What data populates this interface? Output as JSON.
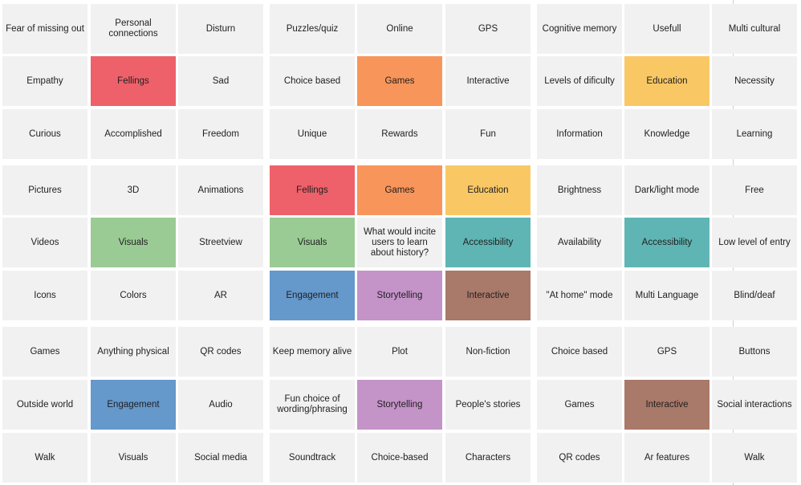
{
  "colors": {
    "default": "#f1f1f1",
    "red": "#ee616a",
    "orange": "#f8955a",
    "yellow": "#f9c865",
    "green": "#9bcb95",
    "teal": "#5fb5b4",
    "blue": "#6598cb",
    "purple": "#c493c8",
    "brown": "#a9796a"
  },
  "clusters": [
    {
      "notes": [
        {
          "text": "Fear of missing out",
          "color": "default"
        },
        {
          "text": "Personal connections",
          "color": "default"
        },
        {
          "text": "Disturn",
          "color": "default"
        },
        {
          "text": "Empathy",
          "color": "default"
        },
        {
          "text": "Fellings",
          "color": "red"
        },
        {
          "text": "Sad",
          "color": "default"
        },
        {
          "text": "Curious",
          "color": "default"
        },
        {
          "text": "Accomplished",
          "color": "default"
        },
        {
          "text": "Freedom",
          "color": "default"
        }
      ]
    },
    {
      "notes": [
        {
          "text": "Puzzles/quiz",
          "color": "default"
        },
        {
          "text": "Online",
          "color": "default"
        },
        {
          "text": "GPS",
          "color": "default"
        },
        {
          "text": "Choice based",
          "color": "default"
        },
        {
          "text": "Games",
          "color": "orange"
        },
        {
          "text": "Interactive",
          "color": "default"
        },
        {
          "text": "Unique",
          "color": "default"
        },
        {
          "text": "Rewards",
          "color": "default"
        },
        {
          "text": "Fun",
          "color": "default"
        }
      ]
    },
    {
      "notes": [
        {
          "text": "Cognitive memory",
          "color": "default"
        },
        {
          "text": "Usefull",
          "color": "default"
        },
        {
          "text": "Multi cultural",
          "color": "default"
        },
        {
          "text": "Levels of dificulty",
          "color": "default"
        },
        {
          "text": "Education",
          "color": "yellow"
        },
        {
          "text": "Necessity",
          "color": "default"
        },
        {
          "text": "Information",
          "color": "default"
        },
        {
          "text": "Knowledge",
          "color": "default"
        },
        {
          "text": "Learning",
          "color": "default"
        }
      ]
    },
    {
      "notes": [
        {
          "text": "Pictures",
          "color": "default"
        },
        {
          "text": "3D",
          "color": "default"
        },
        {
          "text": "Animations",
          "color": "default"
        },
        {
          "text": "Videos",
          "color": "default"
        },
        {
          "text": "Visuals",
          "color": "green"
        },
        {
          "text": "Streetview",
          "color": "default"
        },
        {
          "text": "Icons",
          "color": "default"
        },
        {
          "text": "Colors",
          "color": "default"
        },
        {
          "text": "AR",
          "color": "default"
        }
      ]
    },
    {
      "notes": [
        {
          "text": "Fellings",
          "color": "red"
        },
        {
          "text": "Games",
          "color": "orange"
        },
        {
          "text": "Education",
          "color": "yellow"
        },
        {
          "text": "Visuals",
          "color": "green"
        },
        {
          "text": "What would incite users to learn about history?",
          "color": "default"
        },
        {
          "text": "Accessibility",
          "color": "teal"
        },
        {
          "text": "Engagement",
          "color": "blue"
        },
        {
          "text": "Storytelling",
          "color": "purple"
        },
        {
          "text": "Interactive",
          "color": "brown"
        }
      ]
    },
    {
      "notes": [
        {
          "text": "Brightness",
          "color": "default"
        },
        {
          "text": "Dark/light mode",
          "color": "default"
        },
        {
          "text": "Free",
          "color": "default"
        },
        {
          "text": "Availability",
          "color": "default"
        },
        {
          "text": "Accessibility",
          "color": "teal"
        },
        {
          "text": "Low level of entry",
          "color": "default"
        },
        {
          "text": "\"At home\" mode",
          "color": "default"
        },
        {
          "text": "Multi Language",
          "color": "default"
        },
        {
          "text": "Blind/deaf",
          "color": "default"
        }
      ]
    },
    {
      "notes": [
        {
          "text": "Games",
          "color": "default"
        },
        {
          "text": "Anything physical",
          "color": "default"
        },
        {
          "text": "QR codes",
          "color": "default"
        },
        {
          "text": "Outside world",
          "color": "default"
        },
        {
          "text": "Engagement",
          "color": "blue"
        },
        {
          "text": "Audio",
          "color": "default"
        },
        {
          "text": "Walk",
          "color": "default"
        },
        {
          "text": "Visuals",
          "color": "default"
        },
        {
          "text": "Social media",
          "color": "default"
        }
      ]
    },
    {
      "notes": [
        {
          "text": "Keep memory alive",
          "color": "default"
        },
        {
          "text": "Plot",
          "color": "default"
        },
        {
          "text": "Non-fiction",
          "color": "default"
        },
        {
          "text": "Fun choice of wording/phrasing",
          "color": "default"
        },
        {
          "text": "Storytelling",
          "color": "purple"
        },
        {
          "text": "People's stories",
          "color": "default"
        },
        {
          "text": "Soundtrack",
          "color": "default"
        },
        {
          "text": "Choice-based",
          "color": "default"
        },
        {
          "text": "Characters",
          "color": "default"
        }
      ]
    },
    {
      "notes": [
        {
          "text": "Choice based",
          "color": "default"
        },
        {
          "text": "GPS",
          "color": "default"
        },
        {
          "text": "Buttons",
          "color": "default"
        },
        {
          "text": "Games",
          "color": "default"
        },
        {
          "text": "Interactive",
          "color": "brown"
        },
        {
          "text": "Social interactions",
          "color": "default"
        },
        {
          "text": "QR codes",
          "color": "default"
        },
        {
          "text": "Ar features",
          "color": "default"
        },
        {
          "text": "Walk",
          "color": "default"
        }
      ]
    }
  ]
}
